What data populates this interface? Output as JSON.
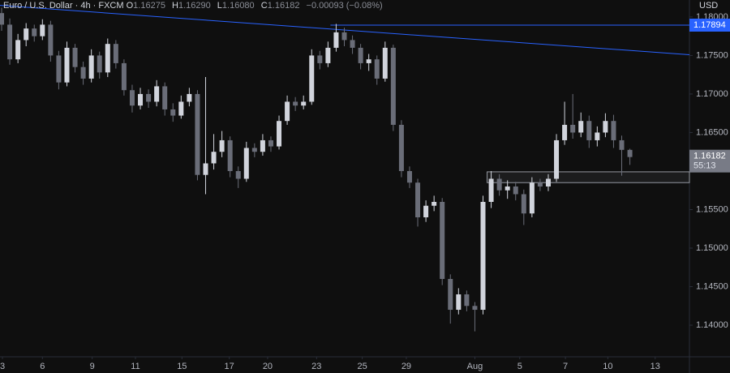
{
  "header": {
    "symbol": "Euro / U.S. Dollar · 4h · FXCM",
    "o_label": "O",
    "o": "1.16275",
    "h_label": "H",
    "h": "1.16290",
    "l_label": "L",
    "l": "1.16080",
    "c_label": "C",
    "c": "1.16182",
    "change": "−0.00093 (−0.08%)",
    "currency": "USD"
  },
  "chart_data": {
    "type": "candlestick",
    "up_color": "#d1d4dc",
    "down_color": "#6a6d78",
    "grid": false,
    "open": [
      1.1805,
      1.179,
      1.1745,
      1.177,
      1.1785,
      1.1775,
      1.179,
      1.175,
      1.1715,
      1.176,
      1.1735,
      1.172,
      1.175,
      1.1728,
      1.1765,
      1.174,
      1.1705,
      1.1685,
      1.17,
      1.169,
      1.171,
      1.168,
      1.1672,
      1.169,
      1.17,
      1.1595,
      1.161,
      1.1625,
      1.164,
      1.16,
      1.159,
      1.163,
      1.1625,
      1.164,
      1.1632,
      1.1665,
      1.169,
      1.1685,
      1.169,
      1.175,
      1.174,
      1.176,
      1.178,
      1.177,
      1.176,
      1.174,
      1.1745,
      1.172,
      1.176,
      1.166,
      1.16,
      1.1585,
      1.154,
      1.1555,
      1.156,
      1.146,
      1.142,
      1.144,
      1.1425,
      1.142,
      1.156,
      1.159,
      1.1575,
      1.158,
      1.157,
      1.1545,
      1.1585,
      1.158,
      1.159,
      1.164,
      1.166,
      1.165,
      1.1665,
      1.164,
      1.165,
      1.1665,
      1.164,
      1.16275
    ],
    "high": [
      1.1812,
      1.1798,
      1.1778,
      1.1792,
      1.179,
      1.1797,
      1.1795,
      1.1756,
      1.1768,
      1.1765,
      1.1742,
      1.1758,
      1.1755,
      1.1772,
      1.177,
      1.1745,
      1.1712,
      1.1708,
      1.1706,
      1.1718,
      1.1715,
      1.1688,
      1.1698,
      1.1708,
      1.1705,
      1.1722,
      1.1648,
      1.1652,
      1.1645,
      1.1606,
      1.1638,
      1.1636,
      1.1648,
      1.1645,
      1.1672,
      1.1698,
      1.1696,
      1.1698,
      1.1758,
      1.1756,
      1.1768,
      1.1791,
      1.1786,
      1.1776,
      1.1765,
      1.1752,
      1.175,
      1.1768,
      1.1764,
      1.1666,
      1.1606,
      1.159,
      1.1562,
      1.1568,
      1.1565,
      1.1466,
      1.1448,
      1.1445,
      1.143,
      1.1568,
      1.16,
      1.1596,
      1.1588,
      1.1586,
      1.1576,
      1.1592,
      1.159,
      1.1596,
      1.1648,
      1.169,
      1.17,
      1.1676,
      1.1672,
      1.1658,
      1.1675,
      1.1673,
      1.1646,
      1.1629
    ],
    "low": [
      1.1782,
      1.1738,
      1.174,
      1.1762,
      1.1768,
      1.177,
      1.1742,
      1.1706,
      1.171,
      1.1728,
      1.1712,
      1.1715,
      1.172,
      1.1722,
      1.1733,
      1.1698,
      1.1676,
      1.168,
      1.1682,
      1.1684,
      1.1672,
      1.1664,
      1.1668,
      1.1684,
      1.1588,
      1.157,
      1.1602,
      1.1618,
      1.1592,
      1.1578,
      1.1586,
      1.1618,
      1.162,
      1.1625,
      1.1628,
      1.166,
      1.1678,
      1.168,
      1.1686,
      1.1732,
      1.1735,
      1.1755,
      1.1762,
      1.1752,
      1.1732,
      1.173,
      1.1712,
      1.1716,
      1.1652,
      1.1592,
      1.1578,
      1.1528,
      1.1534,
      1.1548,
      1.1452,
      1.1402,
      1.1414,
      1.1418,
      1.1392,
      1.1414,
      1.1552,
      1.1568,
      1.1564,
      1.1562,
      1.153,
      1.154,
      1.1574,
      1.1574,
      1.1586,
      1.1634,
      1.1642,
      1.1644,
      1.163,
      1.1632,
      1.1644,
      1.163,
      1.1594,
      1.1608
    ],
    "close": [
      1.179,
      1.1745,
      1.177,
      1.1785,
      1.1775,
      1.179,
      1.175,
      1.1715,
      1.176,
      1.1735,
      1.172,
      1.175,
      1.1728,
      1.1765,
      1.174,
      1.1705,
      1.1685,
      1.17,
      1.169,
      1.171,
      1.168,
      1.1672,
      1.169,
      1.17,
      1.1595,
      1.161,
      1.1625,
      1.164,
      1.16,
      1.159,
      1.163,
      1.1625,
      1.164,
      1.1632,
      1.1665,
      1.169,
      1.1685,
      1.169,
      1.175,
      1.174,
      1.176,
      1.178,
      1.177,
      1.176,
      1.174,
      1.1745,
      1.172,
      1.176,
      1.166,
      1.16,
      1.1585,
      1.154,
      1.1555,
      1.156,
      1.146,
      1.142,
      1.144,
      1.1425,
      1.142,
      1.156,
      1.159,
      1.1575,
      1.158,
      1.157,
      1.1545,
      1.1585,
      1.158,
      1.159,
      1.164,
      1.166,
      1.165,
      1.1665,
      1.164,
      1.165,
      1.1665,
      1.164,
      1.16275,
      1.16182
    ],
    "xlim": [
      -0.2,
      84.3
    ],
    "xticks": [
      {
        "value": 0.1,
        "label": "3"
      },
      {
        "value": 5,
        "label": "6"
      },
      {
        "value": 11.1,
        "label": "9"
      },
      {
        "value": 16.4,
        "label": "11"
      },
      {
        "value": 22.1,
        "label": "15"
      },
      {
        "value": 27.9,
        "label": "17"
      },
      {
        "value": 32.6,
        "label": "20"
      },
      {
        "value": 38.6,
        "label": "23"
      },
      {
        "value": 44.2,
        "label": "25"
      },
      {
        "value": 49.6,
        "label": "29"
      },
      {
        "value": 58,
        "label": "Aug"
      },
      {
        "value": 63.5,
        "label": "5"
      },
      {
        "value": 69.1,
        "label": "7"
      },
      {
        "value": 74.3,
        "label": "10"
      },
      {
        "value": 80.1,
        "label": "13"
      }
    ],
    "ylim": [
      1.1359,
      1.1822
    ],
    "yticks": [
      {
        "value": 1.18,
        "label": "1.18000"
      },
      {
        "value": 1.175,
        "label": "1.17500"
      },
      {
        "value": 1.17,
        "label": "1.17000"
      },
      {
        "value": 1.165,
        "label": "1.16500"
      },
      {
        "value": 1.155,
        "label": "1.15500"
      },
      {
        "value": 1.15,
        "label": "1.15000"
      },
      {
        "value": 1.145,
        "label": "1.14500"
      },
      {
        "value": 1.14,
        "label": "1.14000"
      }
    ],
    "level": {
      "value": 1.17894,
      "color": "#2962ff",
      "x_start": 40.3
    },
    "trendline": {
      "x": [
        -0.2,
        84.3
      ],
      "y": [
        1.1815,
        1.1751
      ],
      "color": "#2962ff"
    },
    "zone": {
      "x": [
        59.5,
        84.3
      ],
      "y": [
        1.1585,
        1.1599
      ]
    },
    "countdown": "55:13"
  }
}
